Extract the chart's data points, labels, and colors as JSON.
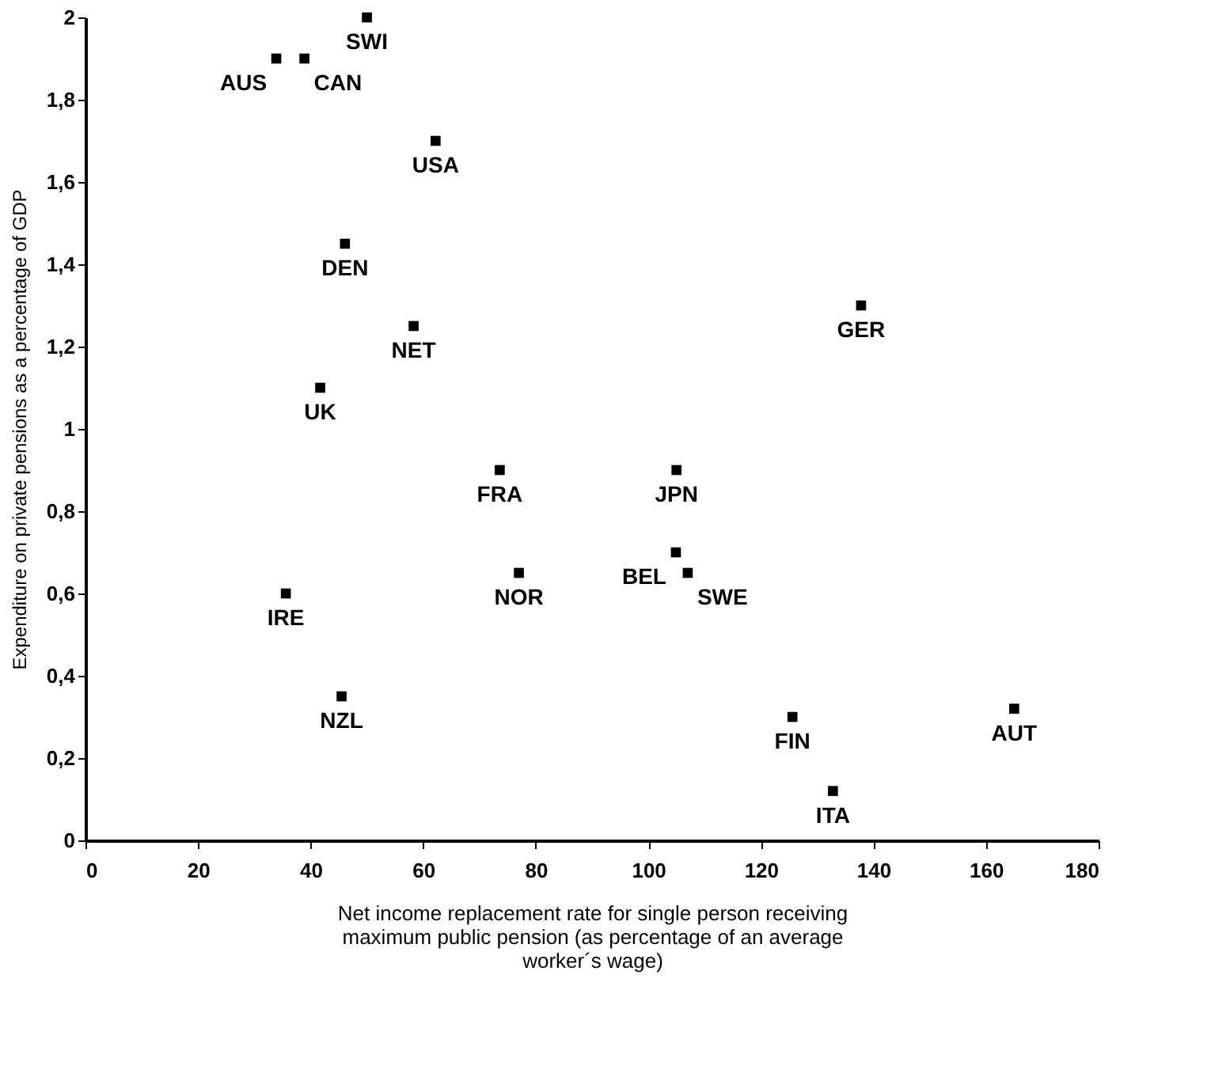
{
  "chart_data": {
    "type": "scatter",
    "xlabel": "Net income replacement rate for single person receiving maximum public pension (as percentage of an average worker´s wage)",
    "ylabel": "Expenditure on private pensions as a percentage of GDP",
    "x": [
      33.9,
      38.9,
      50,
      62.2,
      46.1,
      58.3,
      41.7,
      137.8,
      73.6,
      105,
      104.9,
      107,
      77,
      35.6,
      45.5,
      125.6,
      165,
      132.8
    ],
    "series": [
      {
        "color": "#000000",
        "values": [
          1.9,
          1.9,
          2.0,
          1.7,
          1.45,
          1.25,
          1.1,
          1.3,
          0.9,
          0.9,
          0.7,
          0.65,
          0.65,
          0.6,
          0.35,
          0.3,
          0.32,
          0.12
        ]
      }
    ],
    "annotations": [
      {
        "text": "AUS",
        "x": 33.9,
        "y": 1.9
      },
      {
        "text": "CAN",
        "x": 38.9,
        "y": 1.9
      },
      {
        "text": "SWI",
        "x": 50,
        "y": 2.0
      },
      {
        "text": "USA",
        "x": 62.2,
        "y": 1.7
      },
      {
        "text": "DEN",
        "x": 46.1,
        "y": 1.45
      },
      {
        "text": "NET",
        "x": 58.3,
        "y": 1.25
      },
      {
        "text": "UK",
        "x": 41.7,
        "y": 1.1
      },
      {
        "text": "GER",
        "x": 137.8,
        "y": 1.3
      },
      {
        "text": "FRA",
        "x": 73.6,
        "y": 0.9
      },
      {
        "text": "JPN",
        "x": 105,
        "y": 0.9
      },
      {
        "text": "BEL",
        "x": 104.9,
        "y": 0.7
      },
      {
        "text": "SWE",
        "x": 107,
        "y": 0.65
      },
      {
        "text": "NOR",
        "x": 77,
        "y": 0.65
      },
      {
        "text": "IRE",
        "x": 35.6,
        "y": 0.6
      },
      {
        "text": "NZL",
        "x": 45.5,
        "y": 0.35
      },
      {
        "text": "FIN",
        "x": 125.6,
        "y": 0.3
      },
      {
        "text": "AUT",
        "x": 165,
        "y": 0.32
      },
      {
        "text": "ITA",
        "x": 132.8,
        "y": 0.12
      }
    ],
    "xlim": [
      0,
      180
    ],
    "xticks": [
      0,
      20,
      40,
      60,
      80,
      100,
      120,
      140,
      160,
      180
    ],
    "ylim": [
      0,
      2
    ],
    "yticks": [
      0,
      {
        "value": 0.2,
        "label": "0,2"
      },
      {
        "value": 0.4,
        "label": "0,4"
      },
      {
        "value": 0.6,
        "label": "0,6"
      },
      {
        "value": 0.8,
        "label": "0,8"
      },
      1,
      {
        "value": 1.2,
        "label": "1,2"
      },
      {
        "value": 1.4,
        "label": "1,4"
      },
      {
        "value": 1.6,
        "label": "1,6"
      },
      {
        "value": 1.8,
        "label": "1,8"
      },
      2
    ],
    "grid": false,
    "marker": "square"
  }
}
